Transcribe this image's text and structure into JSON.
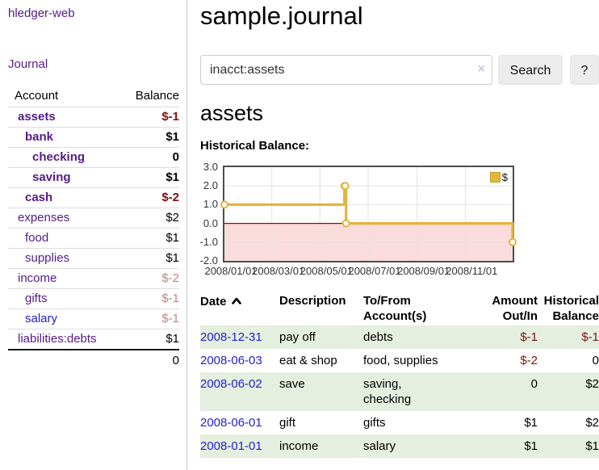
{
  "app": {
    "brand": "hledger-web"
  },
  "nav": {
    "journal": "Journal"
  },
  "sidebar": {
    "header": {
      "account": "Account",
      "balance": "Balance"
    },
    "accounts": [
      {
        "name": "assets",
        "level": 1,
        "bold": true,
        "balance": "$-1"
      },
      {
        "name": "bank",
        "level": 2,
        "bold": true,
        "balance": "$1"
      },
      {
        "name": "checking",
        "level": 3,
        "bold": true,
        "balance": "0"
      },
      {
        "name": "saving",
        "level": 3,
        "bold": true,
        "balance": "$1"
      },
      {
        "name": "cash",
        "level": 2,
        "bold": true,
        "balance": "$-2"
      },
      {
        "name": "expenses",
        "level": 1,
        "bold": false,
        "balance": "$2"
      },
      {
        "name": "food",
        "level": 2,
        "bold": false,
        "balance": "$1"
      },
      {
        "name": "supplies",
        "level": 2,
        "bold": false,
        "balance": "$1"
      },
      {
        "name": "income",
        "level": 1,
        "bold": false,
        "balance": "$-2"
      },
      {
        "name": "gifts",
        "level": 2,
        "bold": false,
        "balance": "$-1"
      },
      {
        "name": "salary",
        "level": 2,
        "bold": false,
        "balance": "$-1",
        "visited": false
      },
      {
        "name": "liabilities:debts",
        "level": 1,
        "bold": false,
        "balance": "$1"
      }
    ],
    "total": "0"
  },
  "header": {
    "title": "sample.journal"
  },
  "search": {
    "value": "inacct:assets",
    "clear_icon": "×",
    "search_label": "Search",
    "help_label": "?"
  },
  "content": {
    "account_title": "assets",
    "chart_heading": "Historical Balance:"
  },
  "chart_data": {
    "type": "line_step",
    "title": "Historical Balance",
    "series": [
      {
        "name": "$",
        "color": "#e3b63c",
        "points": [
          [
            "2008-01-01",
            1
          ],
          [
            "2008-06-01",
            2
          ],
          [
            "2008-06-02",
            2
          ],
          [
            "2008-06-03",
            0
          ],
          [
            "2008-12-31",
            -1
          ]
        ]
      }
    ],
    "x_range": [
      "2008-01-01",
      "2008-12-31"
    ],
    "y_range": [
      -2,
      3
    ],
    "y_ticks": [
      "3.0",
      "2.0",
      "1.0",
      "0.0",
      "-1.0",
      "-2.0"
    ],
    "x_ticks": [
      {
        "label": "2008/01/01",
        "date": "2008-01-01"
      },
      {
        "label": "2008/03/01",
        "date": "2008-03-01"
      },
      {
        "label": "2008/05/01",
        "date": "2008-05-01"
      },
      {
        "label": "2008/07/01",
        "date": "2008-07-01"
      },
      {
        "label": "2008/09/01",
        "date": "2008-09-01"
      },
      {
        "label": "2008/11/01",
        "date": "2008-11-01"
      }
    ],
    "grid": true,
    "legend": {
      "label": "$",
      "position": "top-right"
    },
    "negative_region_color": "#fbdcdc",
    "zero_line_color": "#a40000",
    "marker": {
      "fill": "#ffffff",
      "radius": 4
    }
  },
  "register": {
    "headers": {
      "date": "Date",
      "description": "Description",
      "tofrom1": "To/From",
      "tofrom2": "Account(s)",
      "amount1": "Amount",
      "amount2": "Out/In",
      "hist1": "Historical",
      "hist2": "Balance"
    },
    "rows": [
      {
        "date": "2008-12-31",
        "description": "pay off",
        "accounts": "debts",
        "amount": "$-1",
        "balance": "$-1"
      },
      {
        "date": "2008-06-03",
        "description": "eat & shop",
        "accounts": "food, supplies",
        "amount": "$-2",
        "balance": "0"
      },
      {
        "date": "2008-06-02",
        "description": "save",
        "accounts": "saving, checking",
        "amount": "0",
        "balance": "$2"
      },
      {
        "date": "2008-06-01",
        "description": "gift",
        "accounts": "gifts",
        "amount": "$1",
        "balance": "$2"
      },
      {
        "date": "2008-01-01",
        "description": "income",
        "accounts": "salary",
        "amount": "$1",
        "balance": "$1"
      }
    ]
  },
  "colors": {
    "purple": "#551a8b",
    "blue": "#2420d6",
    "neg-strong": "#7e1111",
    "neg-muted": "#c08484",
    "row-green": "#e4efdf",
    "button-bg": "#ececec",
    "gold": "#e3b63c",
    "pink": "#fbdcdc",
    "zero-red": "#a40000",
    "grid": "#e2e2e2",
    "chart-border": "#4d4d4d",
    "divider": "#dddddd"
  }
}
